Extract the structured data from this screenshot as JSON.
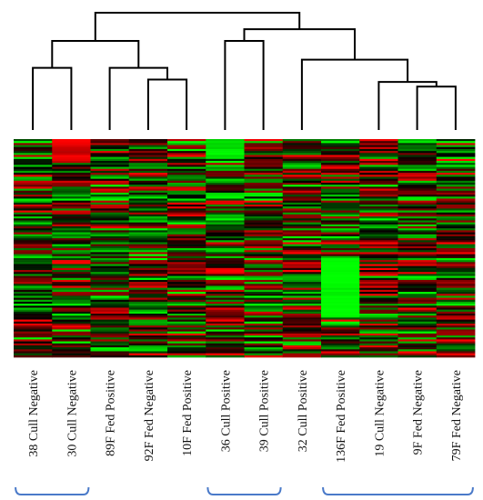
{
  "chart_data": {
    "type": "heatmap",
    "samples": [
      "38 Cull Negative",
      "30 Cull Negative",
      "89F Fed Positive",
      "92F Fed Negative",
      "10F Fed Positive",
      "36 Cull Positive",
      "39 Cull Positive",
      "32 Cull Positive",
      "136F Fed Positive",
      "19 Cull Negative",
      "9F Fed Negative",
      "79F Fed Negative"
    ],
    "dendrogram_merges": [
      [
        4,
        3,
        1
      ],
      [
        10,
        11,
        2
      ],
      [
        9,
        -2,
        3
      ],
      [
        0,
        1,
        4
      ],
      [
        2,
        -1,
        5
      ],
      [
        5,
        6,
        6
      ],
      [
        7,
        -3,
        7
      ],
      [
        -4,
        -5,
        8
      ],
      [
        -6,
        -7,
        9
      ],
      [
        -8,
        -9,
        10
      ]
    ],
    "merge_heights": [
      0.43,
      0.37,
      0.41,
      0.53,
      0.53,
      0.76,
      0.6,
      0.76,
      0.86,
      1.0
    ],
    "brackets": [
      {
        "from_sample": 0,
        "to_sample": 1
      },
      {
        "from_sample": 5,
        "to_sample": 6
      },
      {
        "from_sample": 8,
        "to_sample": 11
      }
    ],
    "color_scale": {
      "low": "#00ff00",
      "mid": "#000000",
      "high": "#ff0000"
    },
    "n_genes": 110,
    "bracket_color": "#4a7ac9",
    "tree_color": "#000000"
  }
}
